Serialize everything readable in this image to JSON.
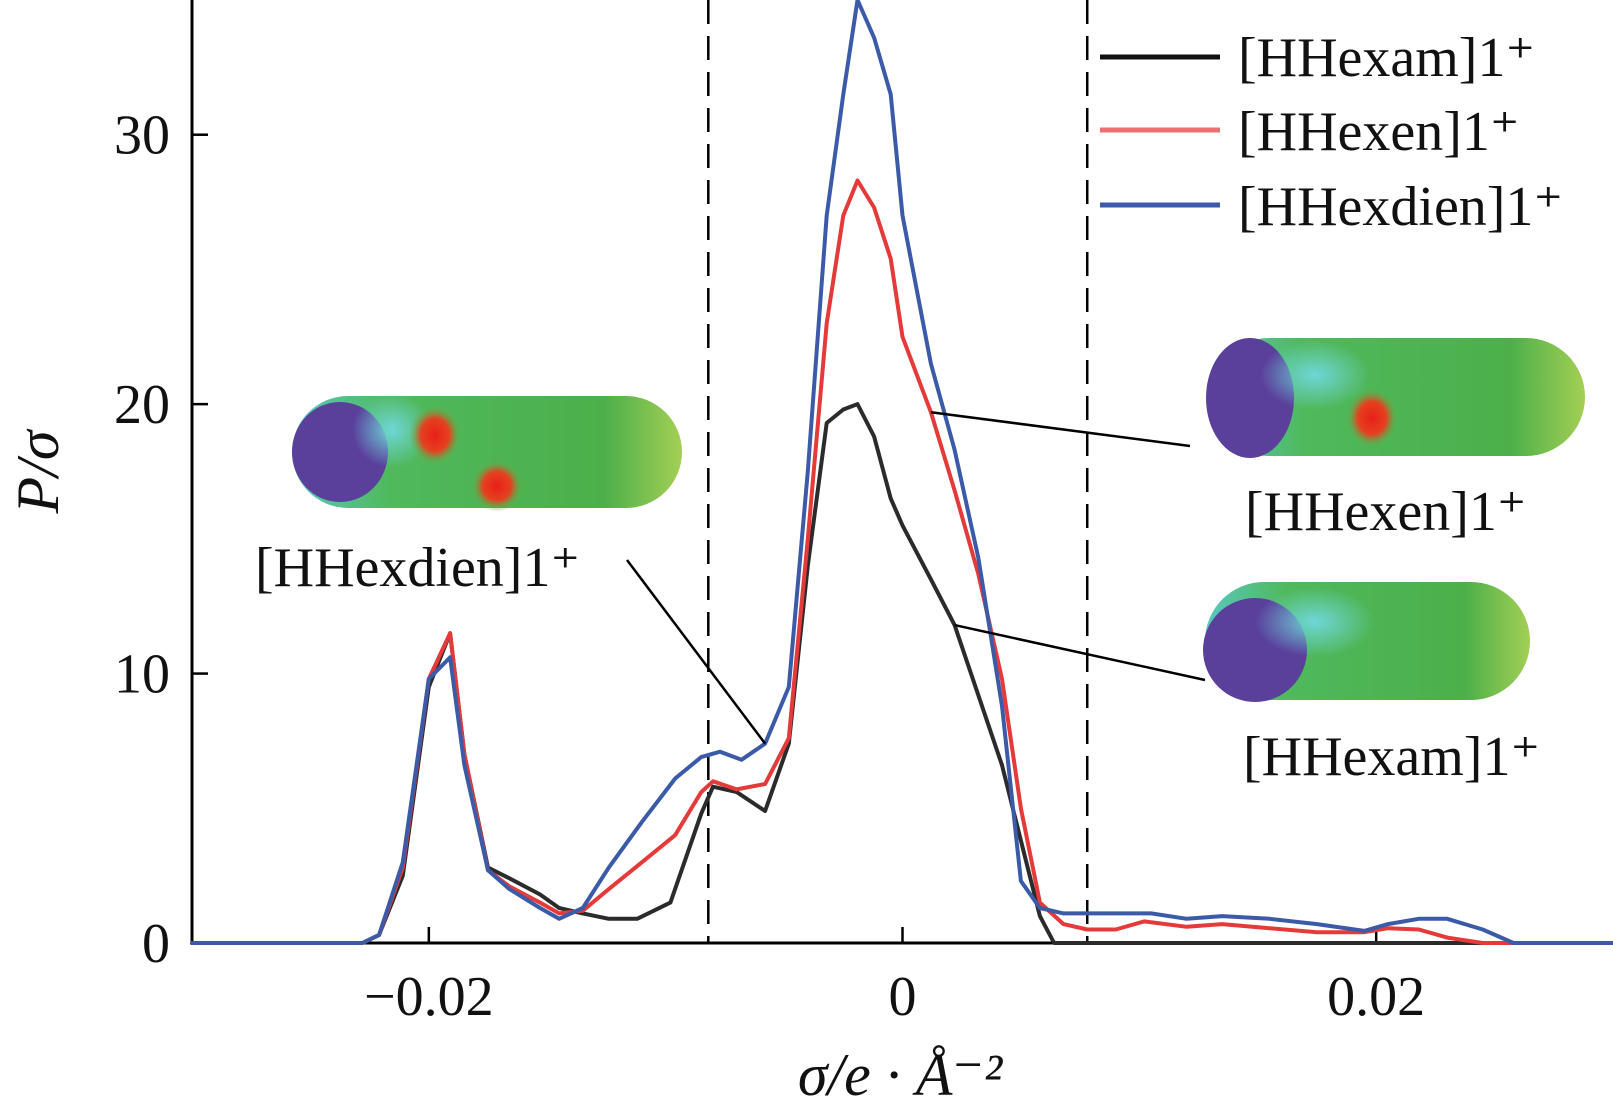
{
  "chart_data": {
    "type": "line",
    "xlabel": "σ/e · Å⁻²",
    "ylabel": "P/σ",
    "xlim": [
      -0.03,
      0.03
    ],
    "ylim": [
      0,
      35
    ],
    "x_ticks": [
      -0.02,
      0,
      0.02
    ],
    "x_tick_labels": [
      "−0.02",
      "0",
      "0.02"
    ],
    "y_ticks": [
      0,
      10,
      20,
      30
    ],
    "y_tick_labels": [
      "0",
      "10",
      "20",
      "30"
    ],
    "legend_position": "top-right",
    "reference_lines_x": [
      -0.0082,
      0.0078
    ],
    "series": [
      {
        "name": "[HHexam]1⁺",
        "color": "#2b2b2b",
        "x": [
          -0.03,
          -0.0228,
          -0.0221,
          -0.0211,
          -0.02,
          -0.0191,
          -0.0185,
          -0.0175,
          -0.0166,
          -0.0153,
          -0.0145,
          -0.0135,
          -0.0124,
          -0.0112,
          -0.0098,
          -0.0085,
          -0.008,
          -0.007,
          -0.0058,
          -0.0048,
          -0.004,
          -0.0032,
          -0.0025,
          -0.0019,
          -0.0012,
          -0.0005,
          0,
          0.0012,
          0.0022,
          0.0032,
          0.0042,
          0.005,
          0.0058,
          0.0064,
          0.03
        ],
        "y": [
          0,
          0,
          0.3,
          2.5,
          9.5,
          11.5,
          7,
          2.8,
          2.4,
          1.8,
          1.3,
          1.1,
          0.9,
          0.9,
          1.5,
          4.8,
          5.8,
          5.6,
          4.9,
          7.4,
          14,
          19.3,
          19.8,
          20,
          18.8,
          16.5,
          15.5,
          13.5,
          11.8,
          9.2,
          6.6,
          3.8,
          1,
          0,
          0
        ]
      },
      {
        "name": "[HHexen]1⁺",
        "color": "#e53a3a",
        "x": [
          -0.03,
          -0.0228,
          -0.0221,
          -0.0211,
          -0.02,
          -0.0191,
          -0.0185,
          -0.0175,
          -0.0166,
          -0.0153,
          -0.0145,
          -0.0135,
          -0.0124,
          -0.011,
          -0.0096,
          -0.0085,
          -0.008,
          -0.007,
          -0.0058,
          -0.0048,
          -0.004,
          -0.0032,
          -0.0025,
          -0.0019,
          -0.0012,
          -0.0005,
          0,
          0.0012,
          0.0022,
          0.0032,
          0.0042,
          0.005,
          0.0058,
          0.0068,
          0.0078,
          0.009,
          0.0102,
          0.012,
          0.0135,
          0.0155,
          0.0175,
          0.0195,
          0.0205,
          0.0218,
          0.023,
          0.0245,
          0.03
        ],
        "y": [
          0,
          0,
          0.3,
          2.8,
          9.8,
          11.5,
          7,
          2.7,
          2.1,
          1.5,
          1.1,
          1.2,
          2,
          3,
          4,
          5.6,
          6,
          5.7,
          5.9,
          7.6,
          15,
          23,
          27,
          28.3,
          27.3,
          25.4,
          22.5,
          19.7,
          16.8,
          13.7,
          9.8,
          5,
          1.5,
          0.7,
          0.5,
          0.5,
          0.8,
          0.6,
          0.7,
          0.55,
          0.4,
          0.4,
          0.55,
          0.5,
          0.2,
          0,
          0
        ]
      },
      {
        "name": "[HHexdien]1⁺",
        "color": "#3b5aa8",
        "x": [
          -0.03,
          -0.0228,
          -0.0221,
          -0.0211,
          -0.02,
          -0.0191,
          -0.0185,
          -0.0175,
          -0.0166,
          -0.0153,
          -0.0145,
          -0.0135,
          -0.0124,
          -0.011,
          -0.0096,
          -0.0085,
          -0.0077,
          -0.0068,
          -0.0058,
          -0.0048,
          -0.004,
          -0.0032,
          -0.0025,
          -0.0019,
          -0.0012,
          -0.0005,
          0,
          0.0012,
          0.0022,
          0.0032,
          0.0042,
          0.005,
          0.0058,
          0.0068,
          0.0078,
          0.009,
          0.0105,
          0.012,
          0.0135,
          0.0155,
          0.0175,
          0.0195,
          0.0205,
          0.0218,
          0.023,
          0.0245,
          0.0258,
          0.03
        ],
        "y": [
          0,
          0,
          0.3,
          3,
          9.8,
          10.6,
          6.6,
          2.7,
          2,
          1.3,
          0.9,
          1.3,
          2.8,
          4.5,
          6.1,
          6.9,
          7.1,
          6.8,
          7.4,
          9.5,
          17.5,
          27,
          31.5,
          35,
          33.6,
          31.5,
          27,
          21.5,
          18.3,
          14.3,
          8.8,
          2.3,
          1.3,
          1.1,
          1.1,
          1.1,
          1.1,
          0.9,
          1,
          0.9,
          0.7,
          0.45,
          0.7,
          0.9,
          0.9,
          0.5,
          0,
          0
        ]
      }
    ]
  },
  "annotations": [
    {
      "text": "[HHexdien]1⁺",
      "target_series": 2
    },
    {
      "text": "[HHexen]1⁺",
      "target_series": 1
    },
    {
      "text": "[HHexam]1⁺",
      "target_series": 0
    }
  ],
  "legend_entries": [
    "[HHexam]1⁺",
    "[HHexen]1⁺",
    "[HHexdien]1⁺"
  ]
}
